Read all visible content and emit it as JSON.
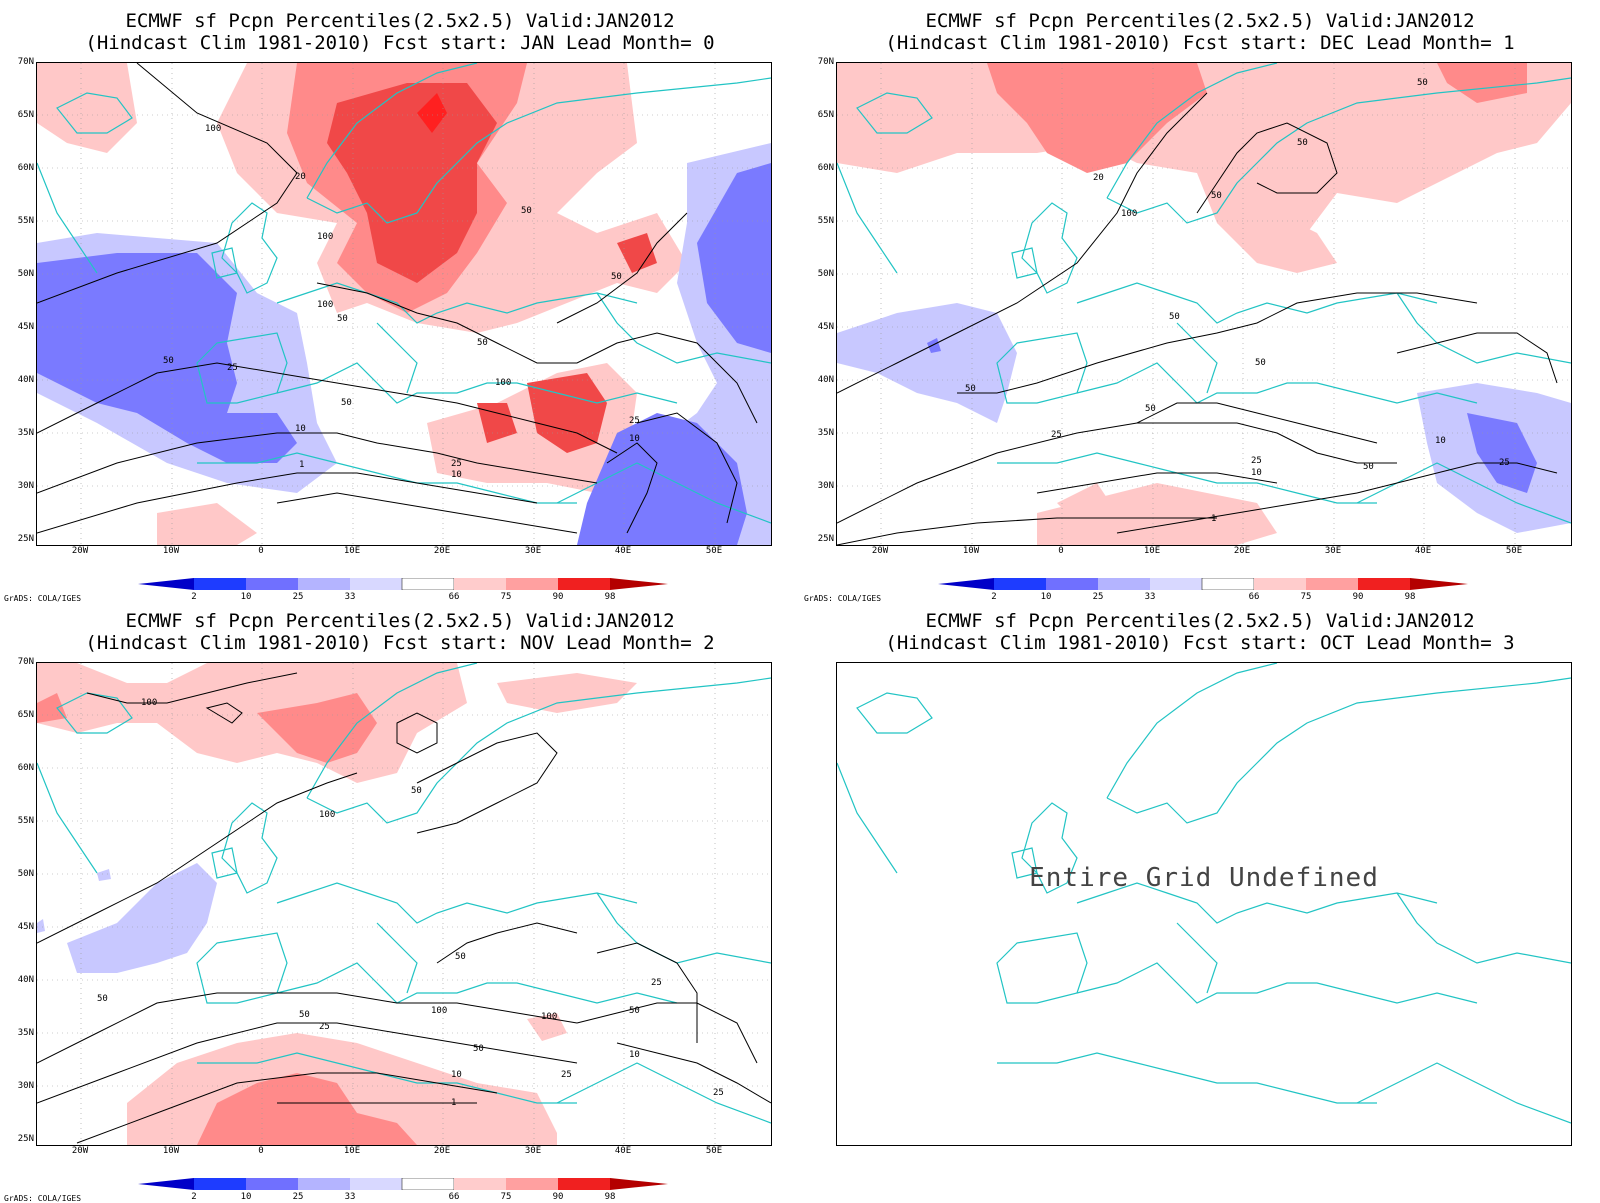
{
  "panels": [
    {
      "title1": "ECMWF sf Pcpn Percentiles(2.5x2.5) Valid:JAN2012",
      "title2": "(Hindcast Clim 1981-2010) Fcst start: JAN  Lead Month= 0",
      "has_colorbar": true,
      "undefined_text": ""
    },
    {
      "title1": "ECMWF sf Pcpn Percentiles(2.5x2.5) Valid:JAN2012",
      "title2": "(Hindcast Clim 1981-2010) Fcst start: DEC  Lead Month= 1",
      "has_colorbar": true,
      "undefined_text": ""
    },
    {
      "title1": "ECMWF sf Pcpn Percentiles(2.5x2.5) Valid:JAN2012",
      "title2": "(Hindcast Clim 1981-2010) Fcst start: NOV  Lead Month= 2",
      "has_colorbar": true,
      "undefined_text": ""
    },
    {
      "title1": "ECMWF sf Pcpn Percentiles(2.5x2.5) Valid:JAN2012",
      "title2": "(Hindcast Clim 1981-2010) Fcst start: OCT  Lead Month= 3",
      "has_colorbar": false,
      "undefined_text": "Entire Grid Undefined"
    }
  ],
  "latitude_labels": [
    "70N",
    "65N",
    "60N",
    "55N",
    "50N",
    "45N",
    "40N",
    "35N",
    "30N",
    "25N"
  ],
  "longitude_labels": [
    "20W",
    "10W",
    "0",
    "10E",
    "20E",
    "30E",
    "40E",
    "50E"
  ],
  "colorbar": {
    "labels": [
      "2",
      "10",
      "25",
      "33",
      "66",
      "75",
      "90",
      "98"
    ],
    "colors": [
      "#0000c8",
      "#1e3cff",
      "#7070ff",
      "#b4b4ff",
      "#d8d8ff",
      "#ffffff",
      "#ffcccc",
      "#ffa0a0",
      "#ff6060",
      "#f02020",
      "#b40000"
    ]
  },
  "credit": "GrADS: COLA/IGES",
  "colors": {
    "coast": "#22c4c4",
    "contour": "#000000",
    "shade_light_red": "#ffc8c8",
    "shade_mid_red": "#ff8a8a",
    "shade_red": "#f04848",
    "shade_dark_red": "#ff2020",
    "shade_light_blue": "#c8c8ff",
    "shade_blue": "#7a7aff"
  },
  "contour_labels": {
    "panel1": [
      "100",
      "20",
      "100",
      "100",
      "50",
      "50",
      "25",
      "10",
      "1",
      "50",
      "50",
      "100",
      "25",
      "10",
      "10",
      "50",
      "50",
      "25"
    ],
    "panel2": [
      "50",
      "50",
      "20",
      "50",
      "100",
      "50",
      "50",
      "50",
      "50",
      "25",
      "25",
      "10",
      "1",
      "10",
      "25",
      "50"
    ],
    "panel3": [
      "100",
      "100",
      "50",
      "50",
      "50",
      "100",
      "100",
      "50",
      "25",
      "50",
      "10",
      "25",
      "1",
      "10",
      "25",
      "50",
      "25"
    ]
  }
}
